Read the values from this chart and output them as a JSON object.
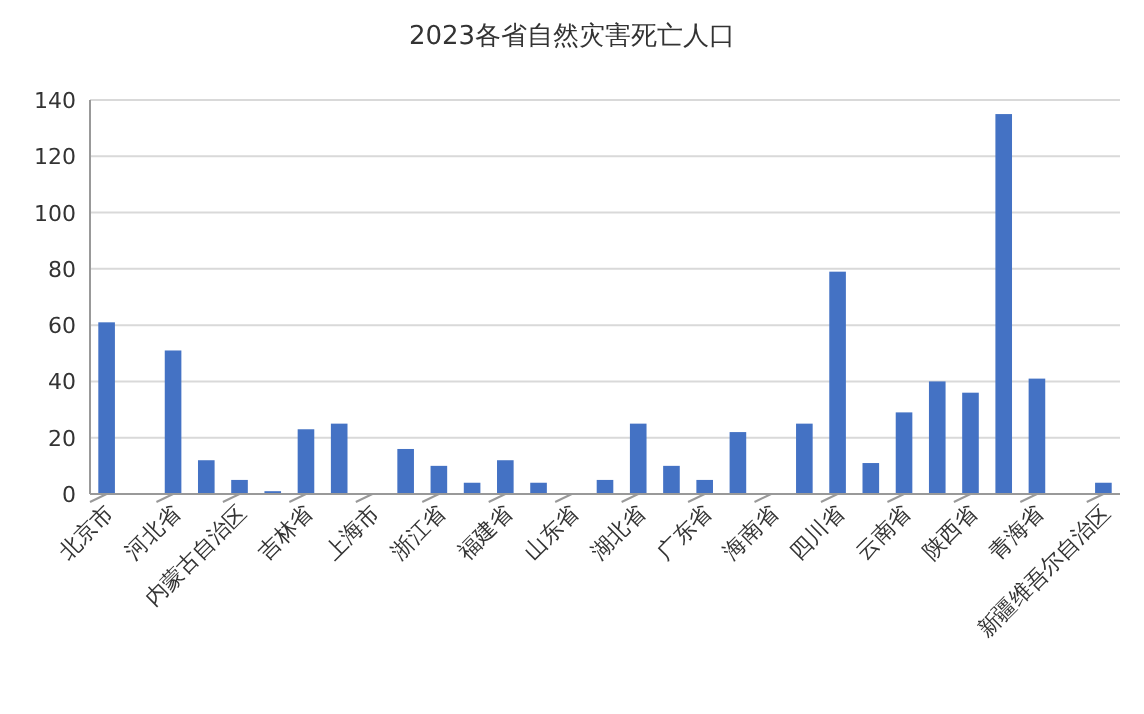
{
  "chart_data": {
    "type": "bar",
    "title": "2023各省自然灾害死亡人口",
    "categories": [
      "北京市",
      null,
      "河北省",
      null,
      "内蒙古自治区",
      null,
      "吉林省",
      null,
      "上海市",
      null,
      "浙江省",
      null,
      "福建省",
      null,
      "山东省",
      null,
      "湖北省",
      null,
      "广东省",
      null,
      "海南省",
      null,
      "四川省",
      null,
      "云南省",
      null,
      "陕西省",
      null,
      "青海省",
      null,
      "新疆维吾尔自治区"
    ],
    "values": [
      61,
      0,
      51,
      12,
      5,
      1,
      23,
      25,
      0,
      16,
      10,
      4,
      12,
      4,
      0,
      5,
      25,
      10,
      5,
      22,
      0,
      25,
      79,
      11,
      29,
      40,
      36,
      135,
      41,
      0,
      4
    ],
    "color": "#4472c4",
    "ylim": [
      0,
      140
    ],
    "yticks": [
      0,
      20,
      40,
      60,
      80,
      100,
      120,
      140
    ],
    "grid": "y"
  }
}
